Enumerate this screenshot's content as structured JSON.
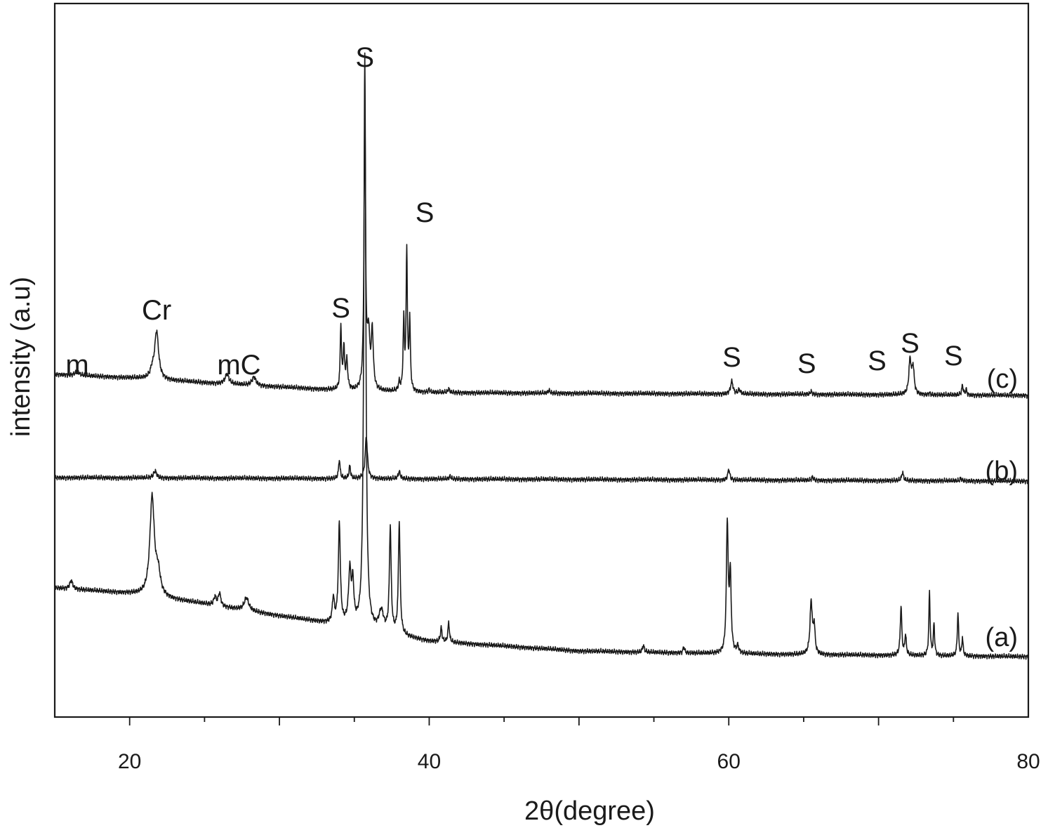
{
  "chart_data": {
    "type": "line",
    "xlabel": "2θ(degree)",
    "ylabel": "intensity (a.u)",
    "xlim": [
      15,
      80
    ],
    "x_ticks": [
      20,
      40,
      60,
      80
    ],
    "x_tick_labels": [
      "20",
      "40",
      "60",
      "80"
    ],
    "y_ticks": [],
    "grid": false,
    "legend": "none",
    "series": [
      {
        "name": "(a)",
        "offset": 0,
        "baseline": [
          [
            15,
            0.98
          ],
          [
            20,
            0.9
          ],
          [
            25,
            0.75
          ],
          [
            30,
            0.58
          ],
          [
            35,
            0.42
          ],
          [
            40,
            0.22
          ],
          [
            50,
            0.08
          ],
          [
            60,
            0.04
          ],
          [
            80,
            0.0
          ]
        ],
        "peaks": [
          [
            16.1,
            0.12,
            0.12
          ],
          [
            21.5,
            1.4,
            0.18
          ],
          [
            21.9,
            0.3,
            0.18
          ],
          [
            25.7,
            0.12,
            0.1
          ],
          [
            26.0,
            0.18,
            0.1
          ],
          [
            27.8,
            0.18,
            0.18
          ],
          [
            33.6,
            0.35,
            0.08
          ],
          [
            34.0,
            1.42,
            0.08
          ],
          [
            34.7,
            0.75,
            0.1
          ],
          [
            34.9,
            0.55,
            0.08
          ],
          [
            35.7,
            8.2,
            0.08
          ],
          [
            36.8,
            0.28,
            0.18
          ],
          [
            37.4,
            1.5,
            0.07
          ],
          [
            38.0,
            1.6,
            0.07
          ],
          [
            40.8,
            0.2,
            0.06
          ],
          [
            41.3,
            0.28,
            0.06
          ],
          [
            54.3,
            0.1,
            0.07
          ],
          [
            57.0,
            0.08,
            0.07
          ],
          [
            59.9,
            1.85,
            0.07
          ],
          [
            60.1,
            1.1,
            0.07
          ],
          [
            60.6,
            0.1,
            0.08
          ],
          [
            65.5,
            0.75,
            0.09
          ],
          [
            65.7,
            0.38,
            0.07
          ],
          [
            71.5,
            0.7,
            0.06
          ],
          [
            71.8,
            0.28,
            0.06
          ],
          [
            73.4,
            0.9,
            0.05
          ],
          [
            73.7,
            0.45,
            0.05
          ],
          [
            75.3,
            0.62,
            0.05
          ],
          [
            75.6,
            0.25,
            0.05
          ]
        ]
      },
      {
        "name": "(b)",
        "offset": 2.55,
        "baseline": [
          [
            15,
            0.0
          ],
          [
            80,
            -0.05
          ]
        ],
        "peaks": [
          [
            21.7,
            0.1,
            0.12
          ],
          [
            34.0,
            0.27,
            0.06
          ],
          [
            34.7,
            0.18,
            0.06
          ],
          [
            35.8,
            0.6,
            0.09
          ],
          [
            38.0,
            0.1,
            0.08
          ],
          [
            41.4,
            0.04,
            0.06
          ],
          [
            60.0,
            0.15,
            0.08
          ],
          [
            65.6,
            0.05,
            0.06
          ],
          [
            71.6,
            0.12,
            0.07
          ],
          [
            75.5,
            0.04,
            0.05
          ]
        ]
      },
      {
        "name": "(c)",
        "offset": 3.72,
        "baseline": [
          [
            15,
            0.3
          ],
          [
            20,
            0.25
          ],
          [
            25,
            0.18
          ],
          [
            30,
            0.12
          ],
          [
            35,
            0.06
          ],
          [
            40,
            0.04
          ],
          [
            60,
            0.02
          ],
          [
            80,
            0.0
          ]
        ],
        "peaks": [
          [
            16.5,
            0.06,
            0.15
          ],
          [
            21.8,
            0.68,
            0.16
          ],
          [
            21.5,
            0.1,
            0.14
          ],
          [
            26.5,
            0.14,
            0.16
          ],
          [
            28.3,
            0.12,
            0.16
          ],
          [
            34.1,
            0.9,
            0.05
          ],
          [
            34.3,
            0.58,
            0.06
          ],
          [
            34.5,
            0.4,
            0.07
          ],
          [
            35.7,
            4.03,
            0.06
          ],
          [
            35.95,
            0.75,
            0.1
          ],
          [
            36.2,
            0.8,
            0.08
          ],
          [
            38.0,
            0.12,
            0.06
          ],
          [
            38.3,
            1.0,
            0.05
          ],
          [
            38.5,
            2.0,
            0.05
          ],
          [
            38.7,
            1.0,
            0.05
          ],
          [
            40.0,
            0.04,
            0.06
          ],
          [
            41.3,
            0.05,
            0.07
          ],
          [
            48.0,
            0.04,
            0.06
          ],
          [
            60.2,
            0.18,
            0.1
          ],
          [
            60.7,
            0.06,
            0.08
          ],
          [
            65.5,
            0.04,
            0.08
          ],
          [
            72.1,
            0.48,
            0.09
          ],
          [
            72.3,
            0.38,
            0.09
          ],
          [
            73.4,
            0.03,
            0.05
          ],
          [
            75.6,
            0.14,
            0.06
          ],
          [
            75.85,
            0.08,
            0.05
          ]
        ]
      }
    ],
    "annotations": [
      {
        "text": "m",
        "x": 16.5,
        "series": "(c)"
      },
      {
        "text": "Cr",
        "x": 21.8,
        "series": "(c)"
      },
      {
        "text": "mC",
        "x": 27.3,
        "series": "(c)"
      },
      {
        "text": "S",
        "x": 34.1,
        "series": "(c)"
      },
      {
        "text": "S",
        "x": 35.7,
        "series": "(c)"
      },
      {
        "text": "S",
        "x": 39.7,
        "series": "(c)"
      },
      {
        "text": "S",
        "x": 60.2,
        "series": "(c)"
      },
      {
        "text": "S",
        "x": 65.2,
        "series": "(c)"
      },
      {
        "text": "S",
        "x": 69.9,
        "series": "(c)"
      },
      {
        "text": "S",
        "x": 72.1,
        "series": "(c)"
      },
      {
        "text": "S",
        "x": 75.0,
        "series": "(c)"
      }
    ]
  }
}
